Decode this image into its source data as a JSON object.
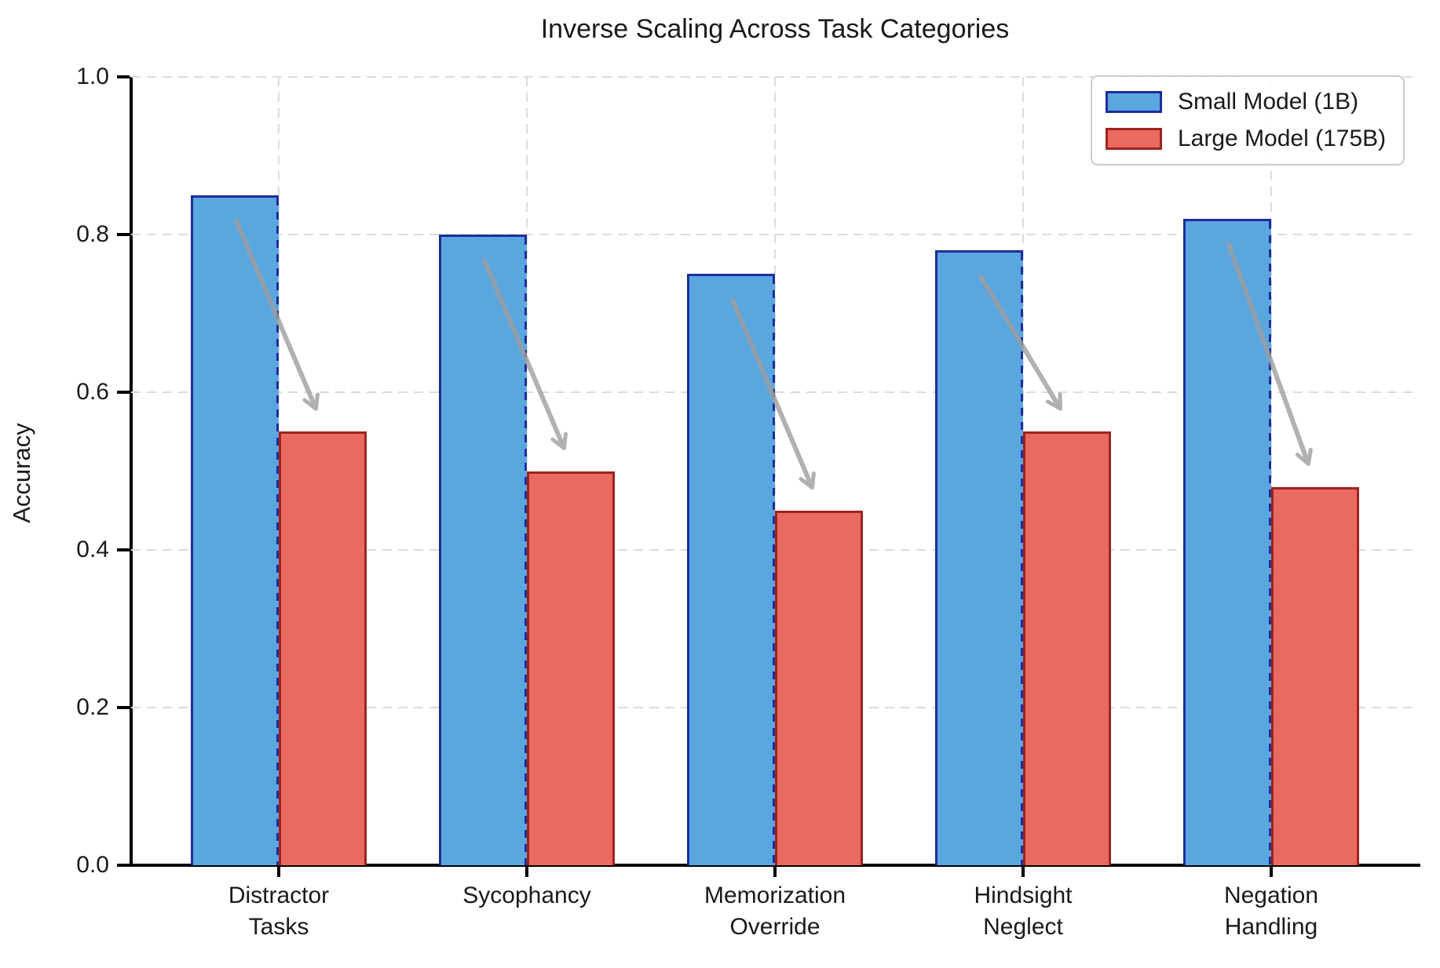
{
  "figure": {
    "title": "Inverse Scaling Across Task Categories"
  },
  "y_axis": {
    "label": "Accuracy",
    "tick_labels": [
      "0.0",
      "0.2",
      "0.4",
      "0.6",
      "0.8",
      "1.0"
    ]
  },
  "legend": {
    "position": "upper right",
    "items": [
      {
        "label": "Small Model (1B)",
        "series": "small"
      },
      {
        "label": "Large Model (175B)",
        "series": "large"
      }
    ]
  },
  "colors": {
    "small_fill": "#5AA7E0",
    "small_edge": "#1E2D9B",
    "large_fill": "#EA6A60",
    "large_edge": "#9C241F",
    "grid": "#DCDCDC",
    "arrow": "#9E9E9E",
    "axis": "#000000",
    "legend_border": "#CCCCCC"
  },
  "chart_data": {
    "type": "bar",
    "title": "Inverse Scaling Across Task Categories",
    "xlabel": "",
    "ylabel": "Accuracy",
    "ylim": [
      0.0,
      1.0
    ],
    "yticks": [
      0.0,
      0.2,
      0.4,
      0.6,
      0.8,
      1.0
    ],
    "grid": true,
    "grid_style": "dashed",
    "legend_position": "upper right",
    "categories": [
      "Distractor\nTasks",
      "Sycophancy",
      "Memorization\nOverride",
      "Hindsight\nNeglect",
      "Negation\nHandling"
    ],
    "series": [
      {
        "name": "Small Model (1B)",
        "color": "#5AA7E0",
        "edge_color": "#1E2D9B",
        "values": [
          0.85,
          0.8,
          0.75,
          0.78,
          0.82
        ]
      },
      {
        "name": "Large Model (175B)",
        "color": "#EA6A60",
        "edge_color": "#9C241F",
        "values": [
          0.55,
          0.5,
          0.45,
          0.55,
          0.48
        ]
      }
    ],
    "annotations": [
      {
        "type": "arrow",
        "color": "#9E9E9E",
        "description": "gray arrow from small-model bar top down to large-model bar top",
        "category": "Distractor\nTasks"
      },
      {
        "type": "arrow",
        "color": "#9E9E9E",
        "description": "gray arrow from small-model bar top down to large-model bar top",
        "category": "Sycophancy"
      },
      {
        "type": "arrow",
        "color": "#9E9E9E",
        "description": "gray arrow from small-model bar top down to large-model bar top",
        "category": "Memorization\nOverride"
      },
      {
        "type": "arrow",
        "color": "#9E9E9E",
        "description": "gray arrow from small-model bar top down to large-model bar top",
        "category": "Hindsight\nNeglect"
      },
      {
        "type": "arrow",
        "color": "#9E9E9E",
        "description": "gray arrow from small-model bar top down to large-model bar top",
        "category": "Negation\nHandling"
      }
    ]
  }
}
